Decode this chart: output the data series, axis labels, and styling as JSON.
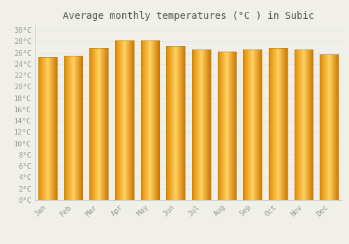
{
  "title": "Average monthly temperatures (°C ) in Subic",
  "months": [
    "Jan",
    "Feb",
    "Mar",
    "Apr",
    "May",
    "Jun",
    "Jul",
    "Aug",
    "Sep",
    "Oct",
    "Nov",
    "Dec"
  ],
  "values": [
    25.2,
    25.5,
    26.8,
    28.2,
    28.2,
    27.2,
    26.6,
    26.2,
    26.6,
    26.8,
    26.6,
    25.7
  ],
  "bar_color_light": "#FFD966",
  "bar_color_mid": "#FFAA00",
  "bar_color_dark": "#E08000",
  "bar_edge_color": "#B87800",
  "ylim": [
    0,
    31
  ],
  "yticks": [
    0,
    2,
    4,
    6,
    8,
    10,
    12,
    14,
    16,
    18,
    20,
    22,
    24,
    26,
    28,
    30
  ],
  "ytick_labels": [
    "0°C",
    "2°C",
    "4°C",
    "6°C",
    "8°C",
    "10°C",
    "12°C",
    "14°C",
    "16°C",
    "18°C",
    "20°C",
    "22°C",
    "24°C",
    "26°C",
    "28°C",
    "30°C"
  ],
  "background_color": "#f0f0e8",
  "grid_color": "#e8e8e8",
  "title_fontsize": 10,
  "tick_fontsize": 7.5,
  "font_family": "monospace"
}
